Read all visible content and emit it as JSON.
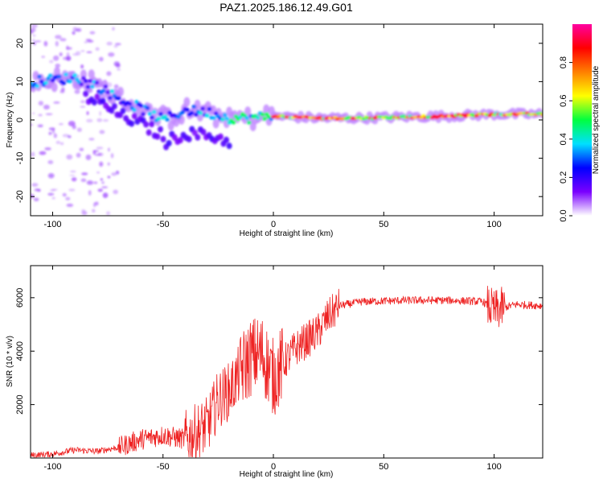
{
  "title": "PAZ1.2025.186.12.49.G01",
  "colorbar": {
    "label": "Normalized spectral amplitude",
    "ticks": [
      "0.0",
      "0.2",
      "0.4",
      "0.6",
      "0.8"
    ],
    "tick_values": [
      0.0,
      0.2,
      0.4,
      0.6,
      0.8
    ],
    "range": [
      0,
      1
    ],
    "colormap": [
      "#ffffff",
      "#7a00ff",
      "#0000ff",
      "#00e0ff",
      "#00ff40",
      "#ffff00",
      "#ff8000",
      "#ff0000",
      "#ff00a0"
    ]
  },
  "chart_data": [
    {
      "type": "heatmap",
      "xlabel": "Height of straight line (km)",
      "ylabel": "Frequency (Hz)",
      "xlim": [
        -110,
        122
      ],
      "ylim": [
        -25,
        25
      ],
      "xticks": [
        -100,
        -50,
        0,
        50,
        100
      ],
      "yticks": [
        -20,
        -10,
        0,
        10,
        20
      ],
      "ridge": {
        "x": [
          -108,
          -100,
          -90,
          -80,
          -70,
          -60,
          -50,
          -40,
          -30,
          -20,
          -10,
          0,
          20,
          40,
          60,
          80,
          100,
          122
        ],
        "freq": [
          10,
          10.5,
          11,
          9,
          5.5,
          3,
          0,
          2.5,
          2,
          0.5,
          0.5,
          1,
          0.5,
          0.5,
          0.8,
          1,
          1.5,
          1.5
        ]
      }
    },
    {
      "type": "line",
      "xlabel": "Height of straight line (km)",
      "ylabel": "SNR (10 * v/v)",
      "xlim": [
        -110,
        122
      ],
      "ylim": [
        0,
        7200
      ],
      "xticks": [
        -100,
        -50,
        0,
        50,
        100
      ],
      "yticks": [
        2000,
        4000,
        6000
      ],
      "color": "#ee2222",
      "trend": {
        "x": [
          -110,
          -100,
          -90,
          -80,
          -70,
          -60,
          -50,
          -40,
          -30,
          -25,
          -20,
          -15,
          -10,
          -5,
          0,
          5,
          10,
          20,
          25,
          30,
          40,
          60,
          80,
          95,
          100,
          103,
          110,
          122
        ],
        "y": [
          100,
          150,
          300,
          250,
          400,
          700,
          850,
          700,
          1200,
          2200,
          2500,
          3200,
          3800,
          3900,
          3000,
          3600,
          4100,
          4700,
          5300,
          5700,
          5850,
          5900,
          5900,
          5850,
          5500,
          5600,
          5750,
          5700
        ]
      }
    }
  ]
}
